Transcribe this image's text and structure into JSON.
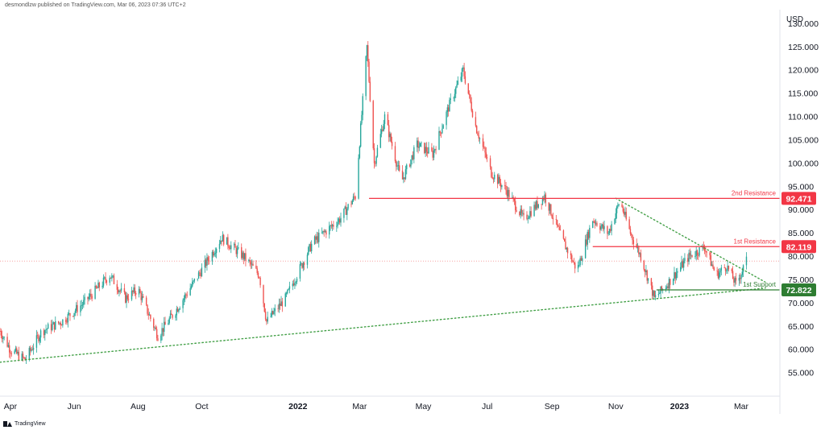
{
  "header": {
    "text": "desmondlzw published on TradingView.com, Mar 06, 2023 07:36 UTC+2"
  },
  "footer": {
    "brand": "TradingView",
    "logo_icon": "tradingview-logo-icon"
  },
  "colors": {
    "up": "#26a69a",
    "down": "#ef5350",
    "resistance": "#f23645",
    "support": "#2e7d32",
    "trend_support": "#43a047",
    "price_line": "#f5a3a3",
    "axis_text": "#131722"
  },
  "chart_data": {
    "type": "candlestick",
    "y_axis_title": "USD",
    "ylim": [
      50,
      133
    ],
    "y_ticks": [
      55,
      60,
      65,
      70,
      75,
      80,
      85,
      90,
      95,
      100,
      105,
      110,
      115,
      120,
      125,
      130
    ],
    "y_tick_labels": [
      "55.000",
      "60.000",
      "65.000",
      "70.000",
      "75.000",
      "80.000",
      "85.000",
      "90.000",
      "95.000",
      "100.000",
      "105.000",
      "110.000",
      "115.000",
      "120.000",
      "125.000",
      "130.000"
    ],
    "x_range": [
      "2021-03-22",
      "2023-04-07"
    ],
    "x_ticks": [
      {
        "label": "Apr",
        "date": "2021-04-01",
        "bold": false
      },
      {
        "label": "Jun",
        "date": "2021-06-01",
        "bold": false
      },
      {
        "label": "Aug",
        "date": "2021-08-01",
        "bold": false
      },
      {
        "label": "Oct",
        "date": "2021-10-01",
        "bold": false
      },
      {
        "label": "2022",
        "date": "2022-01-01",
        "bold": true
      },
      {
        "label": "Mar",
        "date": "2022-03-01",
        "bold": false
      },
      {
        "label": "May",
        "date": "2022-05-01",
        "bold": false
      },
      {
        "label": "Jul",
        "date": "2022-07-01",
        "bold": false
      },
      {
        "label": "Sep",
        "date": "2022-09-01",
        "bold": false
      },
      {
        "label": "Nov",
        "date": "2022-11-01",
        "bold": false
      },
      {
        "label": "2023",
        "date": "2023-01-01",
        "bold": true
      },
      {
        "label": "Mar",
        "date": "2023-03-01",
        "bold": false
      }
    ],
    "grid": false,
    "series_anchors": [
      {
        "date": "2021-03-22",
        "value": 64
      },
      {
        "date": "2021-04-01",
        "value": 60
      },
      {
        "date": "2021-04-15",
        "value": 57.8
      },
      {
        "date": "2021-05-01",
        "value": 64
      },
      {
        "date": "2021-05-20",
        "value": 66
      },
      {
        "date": "2021-06-10",
        "value": 70
      },
      {
        "date": "2021-07-05",
        "value": 76
      },
      {
        "date": "2021-07-20",
        "value": 71
      },
      {
        "date": "2021-08-01",
        "value": 73
      },
      {
        "date": "2021-08-20",
        "value": 63
      },
      {
        "date": "2021-09-05",
        "value": 68
      },
      {
        "date": "2021-09-25",
        "value": 75
      },
      {
        "date": "2021-10-20",
        "value": 84
      },
      {
        "date": "2021-11-10",
        "value": 80
      },
      {
        "date": "2021-11-25",
        "value": 76
      },
      {
        "date": "2021-12-02",
        "value": 66
      },
      {
        "date": "2021-12-20",
        "value": 71
      },
      {
        "date": "2022-01-15",
        "value": 83
      },
      {
        "date": "2022-02-10",
        "value": 88
      },
      {
        "date": "2022-02-25",
        "value": 93
      },
      {
        "date": "2022-03-08",
        "value": 125
      },
      {
        "date": "2022-03-15",
        "value": 100
      },
      {
        "date": "2022-03-25",
        "value": 110
      },
      {
        "date": "2022-04-10",
        "value": 96
      },
      {
        "date": "2022-04-25",
        "value": 104
      },
      {
        "date": "2022-05-10",
        "value": 102
      },
      {
        "date": "2022-05-25",
        "value": 112
      },
      {
        "date": "2022-06-08",
        "value": 120
      },
      {
        "date": "2022-06-20",
        "value": 108
      },
      {
        "date": "2022-07-05",
        "value": 98
      },
      {
        "date": "2022-07-20",
        "value": 94
      },
      {
        "date": "2022-08-05",
        "value": 88
      },
      {
        "date": "2022-08-25",
        "value": 93
      },
      {
        "date": "2022-09-10",
        "value": 84
      },
      {
        "date": "2022-09-25",
        "value": 77
      },
      {
        "date": "2022-10-10",
        "value": 88
      },
      {
        "date": "2022-10-25",
        "value": 85
      },
      {
        "date": "2022-11-05",
        "value": 92
      },
      {
        "date": "2022-11-15",
        "value": 85
      },
      {
        "date": "2022-11-25",
        "value": 80
      },
      {
        "date": "2022-12-08",
        "value": 71
      },
      {
        "date": "2022-12-20",
        "value": 74
      },
      {
        "date": "2023-01-10",
        "value": 80
      },
      {
        "date": "2023-01-25",
        "value": 82
      },
      {
        "date": "2023-02-05",
        "value": 76
      },
      {
        "date": "2023-02-15",
        "value": 78
      },
      {
        "date": "2023-02-24",
        "value": 74
      },
      {
        "date": "2023-03-06",
        "value": 79
      }
    ],
    "levels": [
      {
        "name": "2nd Resistance",
        "value": 92.471,
        "label": "92.471",
        "from": "2022-03-10",
        "kind": "resistance"
      },
      {
        "name": "1st Resistance",
        "value": 82.119,
        "label": "82.119",
        "from": "2022-10-10",
        "kind": "resistance"
      },
      {
        "name": "1st Support",
        "value": 72.822,
        "label": "72.822",
        "from": "2022-12-10",
        "kind": "support"
      }
    ],
    "trendlines": [
      {
        "from": {
          "date": "2021-03-22",
          "value": 57.3
        },
        "to": {
          "date": "2023-03-24",
          "value": 73.2
        },
        "style": "dotted",
        "color": "trend_support"
      },
      {
        "from": {
          "date": "2022-11-01",
          "value": 92.5
        },
        "to": {
          "date": "2023-03-24",
          "value": 74.5
        },
        "style": "dotted",
        "color": "trend_support"
      }
    ],
    "current_price_line": 79.0
  }
}
